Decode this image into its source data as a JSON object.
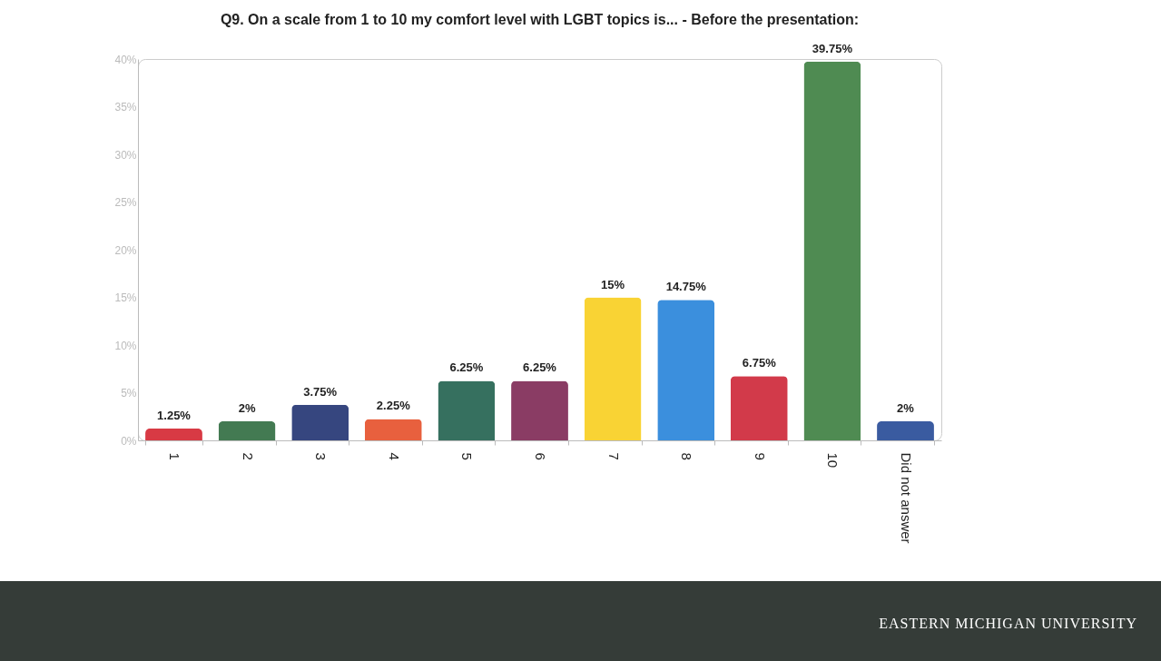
{
  "chart_data": {
    "type": "bar",
    "title": "Q9. On a scale from 1 to 10 my comfort level with LGBT topics is... - Before the presentation:",
    "categories": [
      "1",
      "2",
      "3",
      "4",
      "5",
      "6",
      "7",
      "8",
      "9",
      "10",
      "Did not answer"
    ],
    "values": [
      1.25,
      2,
      3.75,
      2.25,
      6.25,
      6.25,
      15,
      14.75,
      6.75,
      39.75,
      2
    ],
    "colors": [
      "#d83a44",
      "#437a52",
      "#36467f",
      "#e8603e",
      "#36705f",
      "#8a3c64",
      "#f9d334",
      "#3b8fdd",
      "#d23a4a",
      "#4f8b52",
      "#3a5ba0"
    ],
    "value_labels": [
      "1.25%",
      "2%",
      "3.75%",
      "2.25%",
      "6.25%",
      "6.25%",
      "15%",
      "14.75%",
      "6.75%",
      "39.75%",
      "2%"
    ],
    "ylim": [
      0,
      40
    ],
    "yticks": [
      {
        "value": 0,
        "label": "0%"
      },
      {
        "value": 5,
        "label": "5%"
      },
      {
        "value": 10,
        "label": "10%"
      },
      {
        "value": 15,
        "label": "15%"
      },
      {
        "value": 20,
        "label": "20%"
      },
      {
        "value": 25,
        "label": "25%"
      },
      {
        "value": 30,
        "label": "30%"
      },
      {
        "value": 35,
        "label": "35%"
      },
      {
        "value": 40,
        "label": "40%"
      }
    ],
    "grid": false,
    "annotations": [
      "EASTERN MICHIGAN UNIVERSITY"
    ]
  }
}
